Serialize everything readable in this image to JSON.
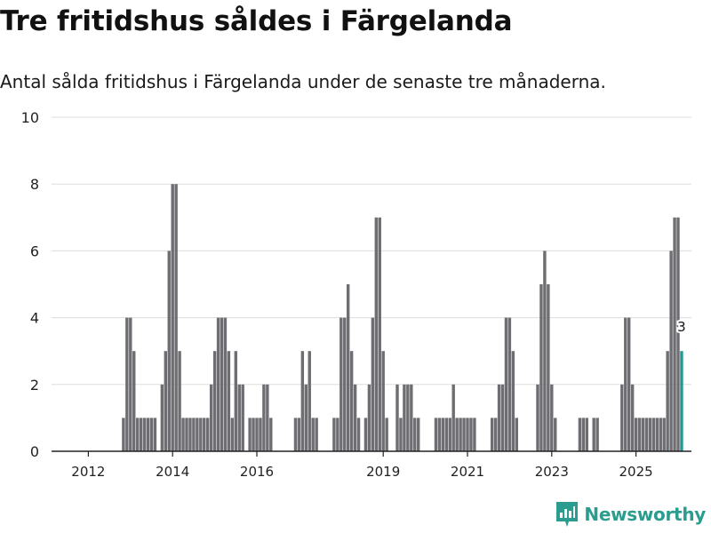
{
  "title": "Tre fritidshus såldes i Färgelanda",
  "subtitle": "Antal sålda fritidshus i Färgelanda under de senaste tre månaderna.",
  "brand": {
    "name": "Newsworthy",
    "color": "#2a9d8f"
  },
  "chart_data": {
    "type": "bar",
    "title": "Tre fritidshus såldes i Färgelanda",
    "xlabel": "",
    "ylabel": "",
    "ylim": [
      0,
      10
    ],
    "yticks": [
      "0",
      "2",
      "4",
      "6",
      "8",
      "10"
    ],
    "xticks": [
      {
        "label": "2012",
        "index": 2
      },
      {
        "label": "2014",
        "index": 26
      },
      {
        "label": "2016",
        "index": 50
      },
      {
        "label": "2019",
        "index": 86
      },
      {
        "label": "2021",
        "index": 110
      },
      {
        "label": "2023",
        "index": 134
      },
      {
        "label": "2025",
        "index": 158
      }
    ],
    "start": "2011-12",
    "colors": {
      "bar": "#6d6d72",
      "highlight": "#1f9a93"
    },
    "highlight_label": "3",
    "values": [
      0,
      0,
      0,
      0,
      0,
      0,
      0,
      0,
      0,
      0,
      0,
      0,
      1,
      4,
      4,
      3,
      1,
      1,
      1,
      1,
      1,
      1,
      0,
      2,
      3,
      6,
      8,
      8,
      3,
      1,
      1,
      1,
      1,
      1,
      1,
      1,
      1,
      2,
      3,
      4,
      4,
      4,
      3,
      1,
      3,
      2,
      2,
      0,
      1,
      1,
      1,
      1,
      2,
      2,
      1,
      0,
      0,
      0,
      0,
      0,
      0,
      1,
      1,
      3,
      2,
      3,
      1,
      1,
      0,
      0,
      0,
      0,
      1,
      1,
      4,
      4,
      5,
      3,
      2,
      1,
      0,
      1,
      2,
      4,
      7,
      7,
      3,
      1,
      0,
      0,
      2,
      1,
      2,
      2,
      2,
      1,
      1,
      0,
      0,
      0,
      0,
      1,
      1,
      1,
      1,
      1,
      2,
      1,
      1,
      1,
      1,
      1,
      1,
      0,
      0,
      0,
      0,
      1,
      1,
      2,
      2,
      4,
      4,
      3,
      1,
      0,
      0,
      0,
      0,
      0,
      2,
      5,
      6,
      5,
      2,
      1,
      0,
      0,
      0,
      0,
      0,
      0,
      1,
      1,
      1,
      0,
      1,
      1,
      0,
      0,
      0,
      0,
      0,
      0,
      2,
      4,
      4,
      2,
      1,
      1,
      1,
      1,
      1,
      1,
      1,
      1,
      1,
      3,
      6,
      7,
      7,
      3
    ]
  }
}
